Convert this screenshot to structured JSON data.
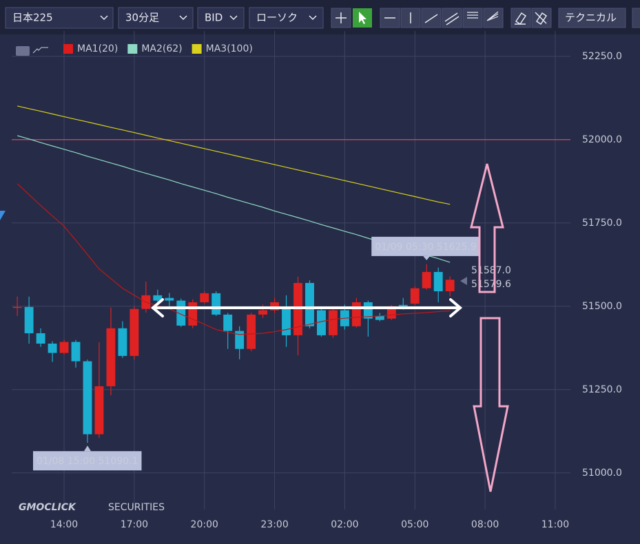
{
  "toolbar": {
    "items": [
      "日本225",
      "30分足",
      "BID",
      "ローソク"
    ],
    "technical": "テクニカル"
  },
  "chart_data": {
    "type": "candlestick",
    "legend": [
      {
        "name": "MA1(20)",
        "color": "#e01b1b"
      },
      {
        "name": "MA2(62)",
        "color": "#8fd9c4"
      },
      {
        "name": "MA3(100)",
        "color": "#d8d21c"
      }
    ],
    "x": [
      12,
      12.5,
      13,
      13.5,
      14,
      14.5,
      15,
      15.5,
      16,
      16.5,
      17,
      17.5,
      18,
      18.5,
      19,
      19.5,
      20,
      20.5,
      21,
      21.5,
      22,
      22.5,
      23,
      23.5,
      24,
      24.5,
      25,
      25.5,
      26,
      26.5,
      27,
      27.5,
      28,
      28.5,
      29,
      29.5,
      30,
      30.5
    ],
    "open": [
      51495,
      51498,
      51419,
      51388,
      51360,
      51393,
      51335,
      51116,
      51260,
      51434,
      51351,
      51492,
      51533,
      51525,
      51517,
      51442,
      51512,
      51539,
      51475,
      51426,
      51372,
      51475,
      51488,
      51498,
      51413,
      51570,
      51488,
      51413,
      51488,
      51440,
      51512,
      51471,
      51463,
      51504,
      51508,
      51554,
      51603,
      51545
    ],
    "high": [
      51529,
      51529,
      51434,
      51395,
      51400,
      51399,
      51340,
      51392,
      51496,
      51455,
      51500,
      51574,
      51550,
      51540,
      51523,
      51521,
      51545,
      51545,
      51480,
      51440,
      51480,
      51505,
      51525,
      51533,
      51589,
      51578,
      51496,
      51494,
      51505,
      51525,
      51517,
      51480,
      51504,
      51525,
      51560,
      51625.9,
      51616,
      51590
    ],
    "low": [
      51471,
      51388,
      51378,
      51333,
      51355,
      51316,
      51090.1,
      51105,
      51233,
      51345,
      51340,
      51481,
      51510,
      51500,
      51438,
      51434,
      51508,
      51471,
      51372,
      51341,
      51365,
      51465,
      51480,
      51378,
      51353,
      51434,
      51409,
      51405,
      51430,
      51436,
      51409,
      51455,
      51459,
      51490,
      51504,
      51550,
      51512,
      51530
    ],
    "close": [
      51498,
      51419,
      51388,
      51360,
      51393,
      51335,
      51116,
      51260,
      51434,
      51351,
      51492,
      51533,
      51517,
      51517,
      51442,
      51512,
      51539,
      51475,
      51426,
      51372,
      51475,
      51488,
      51512,
      51413,
      51570,
      51440,
      51413,
      51488,
      51440,
      51512,
      51463,
      51459,
      51500,
      51500,
      51554,
      51603,
      51545,
      51579.6
    ],
    "up_color": "#e02222",
    "down_color": "#1bb0d2",
    "series": [
      {
        "name": "MA1(20)",
        "color": "#c01818",
        "values": [
          51868,
          51835,
          51802,
          51771,
          51740,
          51698,
          51655,
          51612,
          51583,
          51554,
          51533,
          51512,
          51502,
          51492,
          51476,
          51461,
          51446,
          51430,
          51422,
          51415,
          51417,
          51419,
          51424,
          51430,
          51438,
          51446,
          51454,
          51461,
          51464,
          51467,
          51469,
          51471,
          51474,
          51477,
          51479,
          51481,
          51484,
          51486
        ]
      },
      {
        "name": "MA2(62)",
        "color": "#8fd9c4",
        "values": [
          52012,
          52002,
          51991,
          51981,
          51971,
          51961,
          51950,
          51940,
          51930,
          51920,
          51909,
          51899,
          51889,
          51879,
          51868,
          51858,
          51848,
          51838,
          51827,
          51817,
          51807,
          51797,
          51786,
          51776,
          51766,
          51756,
          51745,
          51735,
          51725,
          51715,
          51704,
          51694,
          51684,
          51674,
          51663,
          51653,
          51643,
          51632
        ]
      },
      {
        "name": "MA3(100)",
        "color": "#d8d21c",
        "values": [
          52101,
          52093,
          52085,
          52077,
          52069,
          52061,
          52053,
          52045,
          52037,
          52029,
          52021,
          52013,
          52005,
          51997,
          51989,
          51981,
          51973,
          51965,
          51957,
          51949,
          51941,
          51933,
          51925,
          51917,
          51909,
          51901,
          51893,
          51885,
          51877,
          51869,
          51861,
          51853,
          51845,
          51837,
          51829,
          51821,
          51813,
          51806
        ]
      }
    ],
    "hline": {
      "value": 52000,
      "color": "#b5475a"
    },
    "annotations": [
      {
        "text": "01/09 05:30 51625.9",
        "x": 29.5,
        "y": 51625.9,
        "side": "above"
      },
      {
        "text": "01/08 15:00 51090.1",
        "x": 15,
        "y": 51090.1,
        "side": "below"
      }
    ],
    "price_tags": [
      {
        "value": 51587.0,
        "label": "51587.0"
      },
      {
        "value": 51579.6,
        "label": "51579.6"
      }
    ],
    "xlim": [
      11.76,
      35.65
    ],
    "xticks": [
      {
        "value": 14,
        "label": "14:00"
      },
      {
        "value": 17,
        "label": "17:00"
      },
      {
        "value": 20,
        "label": "20:00"
      },
      {
        "value": 23,
        "label": "23:00"
      },
      {
        "value": 26,
        "label": "02:00"
      },
      {
        "value": 29,
        "label": "05:00"
      },
      {
        "value": 32,
        "label": "08:00"
      },
      {
        "value": 35,
        "label": "11:00"
      }
    ],
    "ylim": [
      50890,
      52326
    ],
    "yticks": [
      {
        "value": 51000,
        "label": "51000.0"
      },
      {
        "value": 51250,
        "label": "51250.0"
      },
      {
        "value": 51500,
        "label": "51500.0"
      },
      {
        "value": 51750,
        "label": "51750.0"
      },
      {
        "value": 52000,
        "label": "52000.0"
      },
      {
        "value": 52250,
        "label": "52250.0"
      }
    ],
    "grid": true,
    "watermark": {
      "brand": "GMOCLICK",
      "suffix": "SECURITIES"
    }
  }
}
